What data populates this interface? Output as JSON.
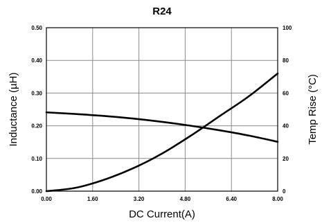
{
  "chart_data": {
    "type": "line",
    "title": "R24",
    "xlabel": "DC Current(A)",
    "ylabel": "Inductance (µH)",
    "y2label": "Temp Rise (°C)",
    "xlim": [
      0,
      8
    ],
    "ylim": [
      0,
      0.5
    ],
    "y2lim": [
      0,
      100
    ],
    "grid": true,
    "x_ticks": [
      "0.00",
      "1.60",
      "3.20",
      "4.80",
      "6.40",
      "8.00"
    ],
    "y_ticks": [
      "0.00",
      "0.10",
      "0.20",
      "0.30",
      "0.40",
      "0.50"
    ],
    "y2_ticks": [
      "0",
      "20",
      "40",
      "60",
      "80",
      "100"
    ],
    "series": [
      {
        "axis": "left",
        "x": [
          0,
          1,
          2,
          3,
          4,
          5,
          6,
          7,
          8
        ],
        "values": [
          0.241,
          0.236,
          0.23,
          0.222,
          0.212,
          0.2,
          0.186,
          0.17,
          0.151
        ]
      },
      {
        "axis": "right",
        "x": [
          0,
          1,
          2,
          3,
          4,
          5,
          6,
          7,
          8
        ],
        "values": [
          0,
          2,
          7,
          14,
          23,
          34,
          46,
          58,
          72
        ]
      }
    ]
  }
}
